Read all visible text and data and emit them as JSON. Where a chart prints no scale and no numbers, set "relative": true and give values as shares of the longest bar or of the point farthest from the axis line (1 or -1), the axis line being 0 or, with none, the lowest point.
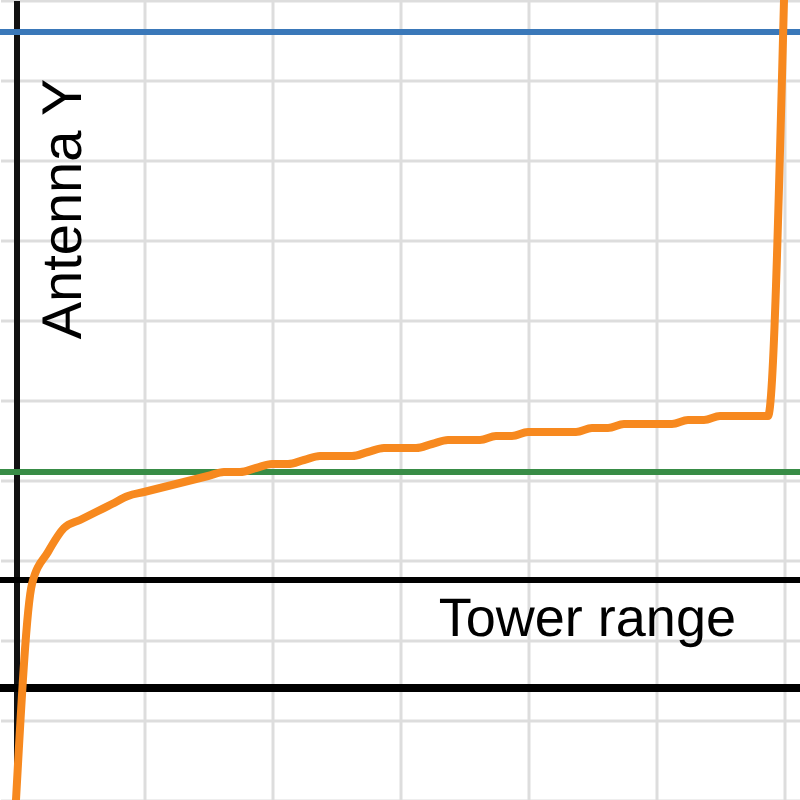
{
  "chart_data": {
    "type": "line",
    "relative": true,
    "ylabel": "Antenna Y",
    "grid": true,
    "categories": [
      null,
      null,
      null,
      null,
      null,
      null,
      null,
      null,
      null,
      null,
      null,
      null,
      null,
      null,
      null,
      null,
      null,
      null,
      null,
      null,
      null,
      null,
      null,
      null,
      null,
      null,
      null,
      null,
      null,
      null,
      null,
      null,
      null,
      null,
      null,
      null,
      null,
      null,
      null,
      null,
      null,
      null,
      null,
      null,
      null,
      null,
      null,
      null,
      null
    ],
    "series": [
      {
        "color": "#f7891f",
        "values": [
          0,
          0.27,
          0.31,
          0.34,
          0.35,
          0.36,
          0.37,
          0.38,
          0.385,
          0.39,
          0.395,
          0.4,
          0.405,
          0.41,
          0.41,
          0.415,
          0.42,
          0.42,
          0.425,
          0.43,
          0.43,
          0.43,
          0.435,
          0.44,
          0.44,
          0.44,
          0.445,
          0.45,
          0.45,
          0.45,
          0.455,
          0.455,
          0.46,
          0.46,
          0.46,
          0.46,
          0.465,
          0.465,
          0.47,
          0.47,
          0.47,
          0.47,
          0.475,
          0.475,
          0.48,
          0.48,
          0.48,
          0.48,
          1
        ]
      }
    ],
    "ref_lines": [
      {
        "axis": "y",
        "value": 0.96,
        "color": "#3a78b9"
      },
      {
        "axis": "y",
        "value": 0.41,
        "color": "#388c46"
      },
      {
        "axis": "y",
        "value": 0.275,
        "color": "#000000",
        "label": "Tower range"
      },
      {
        "axis": "y",
        "value": 0.14,
        "color": "#000000"
      }
    ]
  }
}
